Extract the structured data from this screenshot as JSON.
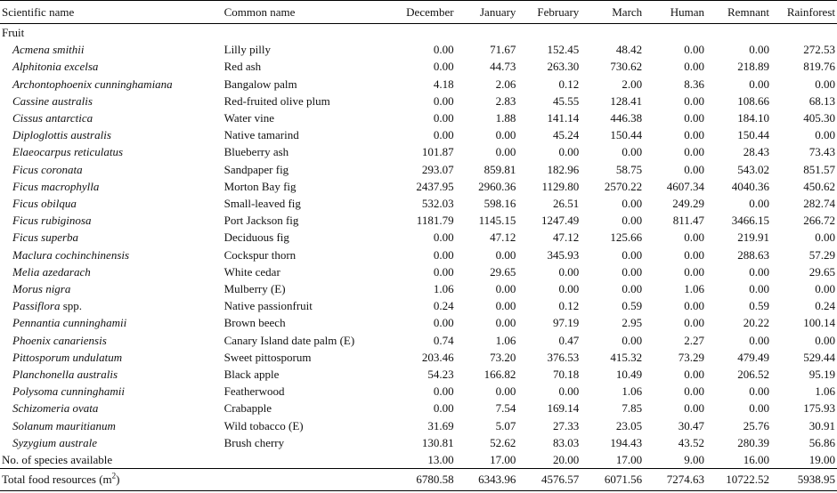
{
  "headers": {
    "scientific": "Scientific name",
    "common": "Common name",
    "december": "December",
    "january": "January",
    "february": "February",
    "march": "March",
    "human": "Human",
    "remnant": "Remnant",
    "rainforest": "Rainforest"
  },
  "section": "Fruit",
  "rows": [
    {
      "sci": "Acmena smithii",
      "common": "Lilly pilly",
      "vals": [
        "0.00",
        "71.67",
        "152.45",
        "48.42",
        "0.00",
        "0.00",
        "272.53"
      ]
    },
    {
      "sci": "Alphitonia excelsa",
      "common": "Red ash",
      "vals": [
        "0.00",
        "44.73",
        "263.30",
        "730.62",
        "0.00",
        "218.89",
        "819.76"
      ]
    },
    {
      "sci": "Archontophoenix cunninghamiana",
      "common": "Bangalow palm",
      "vals": [
        "4.18",
        "2.06",
        "0.12",
        "2.00",
        "8.36",
        "0.00",
        "0.00"
      ]
    },
    {
      "sci": "Cassine australis",
      "common": "Red-fruited olive plum",
      "vals": [
        "0.00",
        "2.83",
        "45.55",
        "128.41",
        "0.00",
        "108.66",
        "68.13"
      ]
    },
    {
      "sci": "Cissus antarctica",
      "common": "Water vine",
      "vals": [
        "0.00",
        "1.88",
        "141.14",
        "446.38",
        "0.00",
        "184.10",
        "405.30"
      ]
    },
    {
      "sci": "Diploglottis australis",
      "common": "Native tamarind",
      "vals": [
        "0.00",
        "0.00",
        "45.24",
        "150.44",
        "0.00",
        "150.44",
        "0.00"
      ]
    },
    {
      "sci": "Elaeocarpus reticulatus",
      "common": "Blueberry ash",
      "vals": [
        "101.87",
        "0.00",
        "0.00",
        "0.00",
        "0.00",
        "28.43",
        "73.43"
      ]
    },
    {
      "sci": "Ficus coronata",
      "common": "Sandpaper fig",
      "vals": [
        "293.07",
        "859.81",
        "182.96",
        "58.75",
        "0.00",
        "543.02",
        "851.57"
      ]
    },
    {
      "sci": "Ficus macrophylla",
      "common": "Morton Bay fig",
      "vals": [
        "2437.95",
        "2960.36",
        "1129.80",
        "2570.22",
        "4607.34",
        "4040.36",
        "450.62"
      ]
    },
    {
      "sci": "Ficus obilqua",
      "common": "Small-leaved fig",
      "vals": [
        "532.03",
        "598.16",
        "26.51",
        "0.00",
        "249.29",
        "0.00",
        "282.74"
      ]
    },
    {
      "sci": "Ficus rubiginosa",
      "common": "Port Jackson fig",
      "vals": [
        "1181.79",
        "1145.15",
        "1247.49",
        "0.00",
        "811.47",
        "3466.15",
        "266.72"
      ]
    },
    {
      "sci": "Ficus superba",
      "common": "Deciduous fig",
      "vals": [
        "0.00",
        "47.12",
        "47.12",
        "125.66",
        "0.00",
        "219.91",
        "0.00"
      ]
    },
    {
      "sci": "Maclura cochinchinensis",
      "common": "Cockspur thorn",
      "vals": [
        "0.00",
        "0.00",
        "345.93",
        "0.00",
        "0.00",
        "288.63",
        "57.29"
      ]
    },
    {
      "sci": "Melia azedarach",
      "common": "White cedar",
      "vals": [
        "0.00",
        "29.65",
        "0.00",
        "0.00",
        "0.00",
        "0.00",
        "29.65"
      ]
    },
    {
      "sci": "Morus nigra",
      "common": "Mulberry (E)",
      "vals": [
        "1.06",
        "0.00",
        "0.00",
        "0.00",
        "1.06",
        "0.00",
        "0.00"
      ]
    },
    {
      "sci": "Passiflora",
      "sci_suffix": " spp.",
      "common": "Native passionfruit",
      "vals": [
        "0.24",
        "0.00",
        "0.12",
        "0.59",
        "0.00",
        "0.59",
        "0.24"
      ]
    },
    {
      "sci": "Pennantia cunninghamii",
      "common": "Brown beech",
      "vals": [
        "0.00",
        "0.00",
        "97.19",
        "2.95",
        "0.00",
        "20.22",
        "100.14"
      ]
    },
    {
      "sci": "Phoenix canariensis",
      "common": "Canary Island date palm (E)",
      "vals": [
        "0.74",
        "1.06",
        "0.47",
        "0.00",
        "2.27",
        "0.00",
        "0.00"
      ]
    },
    {
      "sci": "Pittosporum undulatum",
      "common": "Sweet pittosporum",
      "vals": [
        "203.46",
        "73.20",
        "376.53",
        "415.32",
        "73.29",
        "479.49",
        "529.44"
      ]
    },
    {
      "sci": "Planchonella australis",
      "common": "Black apple",
      "vals": [
        "54.23",
        "166.82",
        "70.18",
        "10.49",
        "0.00",
        "206.52",
        "95.19"
      ]
    },
    {
      "sci": "Polysoma cunninghamii",
      "common": "Featherwood",
      "vals": [
        "0.00",
        "0.00",
        "0.00",
        "1.06",
        "0.00",
        "0.00",
        "1.06"
      ]
    },
    {
      "sci": "Schizomeria ovata",
      "common": "Crabapple",
      "vals": [
        "0.00",
        "7.54",
        "169.14",
        "7.85",
        "0.00",
        "0.00",
        "175.93"
      ]
    },
    {
      "sci": "Solanum mauritianum",
      "common": "Wild tobacco (E)",
      "vals": [
        "31.69",
        "5.07",
        "27.33",
        "23.05",
        "30.47",
        "25.76",
        "30.91"
      ]
    },
    {
      "sci": "Syzygium australe",
      "common": "Brush cherry",
      "vals": [
        "130.81",
        "52.62",
        "83.03",
        "194.43",
        "43.52",
        "280.39",
        "56.86"
      ]
    }
  ],
  "species_row": {
    "label": "No. of species available",
    "vals": [
      "13.00",
      "17.00",
      "20.00",
      "17.00",
      "9.00",
      "16.00",
      "19.00"
    ]
  },
  "total_row": {
    "label": "Total food resources (m",
    "label_sup": "2",
    "label_end": ")",
    "vals": [
      "6780.58",
      "6343.96",
      "4576.57",
      "6071.56",
      "7274.63",
      "10722.52",
      "5938.95"
    ]
  }
}
